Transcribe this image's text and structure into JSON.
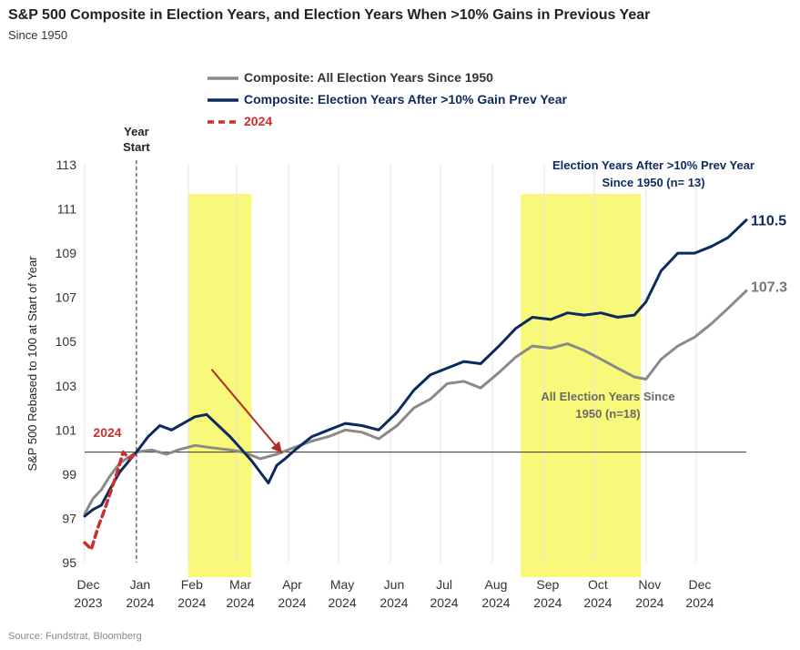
{
  "header": {
    "title": "S&P 500 Composite in Election Years, and Election Years When >10% Gains in Previous Year",
    "subtitle": "Since 1950"
  },
  "footer": {
    "source": "Source: Fundstrat, Bloomberg"
  },
  "chart_data": {
    "type": "line",
    "ylabel": "S&P 500 Rebased to 100 at Start of Year",
    "xlabel": "",
    "ylim": [
      95,
      113
    ],
    "yticks": [
      95,
      97,
      99,
      101,
      103,
      105,
      107,
      109,
      111,
      113
    ],
    "x_tick_labels": [
      [
        "Dec",
        "2023"
      ],
      [
        "Jan",
        "2024"
      ],
      [
        "Feb",
        "2024"
      ],
      [
        "Mar",
        "2024"
      ],
      [
        "Apr",
        "2024"
      ],
      [
        "May",
        "2024"
      ],
      [
        "Jun",
        "2024"
      ],
      [
        "Jul",
        "2024"
      ],
      [
        "Aug",
        "2024"
      ],
      [
        "Sep",
        "2024"
      ],
      [
        "Oct",
        "2024"
      ],
      [
        "Nov",
        "2024"
      ],
      [
        "Dec",
        "2024"
      ]
    ],
    "grid": "vertical",
    "legend_placement": "top-left",
    "reference_line_y": 100,
    "year_start_label": [
      "Year",
      "Start"
    ],
    "highlight_bands": [
      {
        "from": "2024-02-01",
        "to": "2024-03-10",
        "color": "#f8f87a"
      },
      {
        "from": "2024-08-18",
        "to": "2024-10-29",
        "color": "#f8f87a"
      }
    ],
    "arrow": {
      "from": [
        "2024-02-15",
        101.6
      ],
      "to": [
        "2024-04-07",
        100.2
      ],
      "color": "#b02a2a"
    },
    "series": [
      {
        "name": "Composite: All Election Years Since 1950",
        "color": "#8a8a8a",
        "end_label": "107.3",
        "annotation": [
          "All Election Years Since",
          "1950 (n=18)"
        ],
        "annotation_color": "#6a6a6a",
        "points": [
          [
            "2023-12-01",
            97.2
          ],
          [
            "2023-12-06",
            97.9
          ],
          [
            "2023-12-11",
            98.3
          ],
          [
            "2023-12-16",
            98.9
          ],
          [
            "2023-12-22",
            99.5
          ],
          [
            "2024-01-01",
            100.0
          ],
          [
            "2024-01-10",
            100.1
          ],
          [
            "2024-01-19",
            99.9
          ],
          [
            "2024-01-26",
            100.1
          ],
          [
            "2024-02-05",
            100.3
          ],
          [
            "2024-02-15",
            100.2
          ],
          [
            "2024-02-26",
            100.1
          ],
          [
            "2024-03-05",
            100.0
          ],
          [
            "2024-03-15",
            99.7
          ],
          [
            "2024-03-25",
            99.9
          ],
          [
            "2024-04-04",
            100.2
          ],
          [
            "2024-04-15",
            100.5
          ],
          [
            "2024-04-25",
            100.7
          ],
          [
            "2024-05-05",
            101.0
          ],
          [
            "2024-05-15",
            100.9
          ],
          [
            "2024-05-25",
            100.6
          ],
          [
            "2024-06-05",
            101.2
          ],
          [
            "2024-06-15",
            102.0
          ],
          [
            "2024-06-25",
            102.4
          ],
          [
            "2024-07-05",
            103.1
          ],
          [
            "2024-07-15",
            103.2
          ],
          [
            "2024-07-25",
            102.9
          ],
          [
            "2024-08-05",
            103.6
          ],
          [
            "2024-08-15",
            104.3
          ],
          [
            "2024-08-25",
            104.8
          ],
          [
            "2024-09-05",
            104.7
          ],
          [
            "2024-09-15",
            104.9
          ],
          [
            "2024-09-25",
            104.6
          ],
          [
            "2024-10-05",
            104.2
          ],
          [
            "2024-10-15",
            103.8
          ],
          [
            "2024-10-25",
            103.4
          ],
          [
            "2024-11-01",
            103.3
          ],
          [
            "2024-11-10",
            104.2
          ],
          [
            "2024-11-20",
            104.8
          ],
          [
            "2024-11-30",
            105.2
          ],
          [
            "2024-12-10",
            105.8
          ],
          [
            "2024-12-20",
            106.5
          ],
          [
            "2024-12-31",
            107.3
          ]
        ]
      },
      {
        "name": "Composite: Election Years After >10% Gain Prev Year",
        "color": "#0d2a5e",
        "end_label": "110.5",
        "annotation": [
          "Election Years After >10% Prev Year",
          "Since 1950 (n= 13)"
        ],
        "annotation_color": "#0d2a5e",
        "points": [
          [
            "2023-12-01",
            97.1
          ],
          [
            "2023-12-06",
            97.4
          ],
          [
            "2023-12-11",
            97.6
          ],
          [
            "2023-12-16",
            98.3
          ],
          [
            "2023-12-22",
            99.1
          ],
          [
            "2024-01-01",
            100.0
          ],
          [
            "2024-01-08",
            100.7
          ],
          [
            "2024-01-15",
            101.2
          ],
          [
            "2024-01-22",
            101.0
          ],
          [
            "2024-01-29",
            101.3
          ],
          [
            "2024-02-05",
            101.6
          ],
          [
            "2024-02-12",
            101.7
          ],
          [
            "2024-02-19",
            101.2
          ],
          [
            "2024-02-26",
            100.7
          ],
          [
            "2024-03-03",
            100.2
          ],
          [
            "2024-03-10",
            99.6
          ],
          [
            "2024-03-15",
            99.1
          ],
          [
            "2024-03-20",
            98.6
          ],
          [
            "2024-03-25",
            99.4
          ],
          [
            "2024-03-30",
            99.7
          ],
          [
            "2024-04-05",
            100.1
          ],
          [
            "2024-04-15",
            100.7
          ],
          [
            "2024-04-25",
            101.0
          ],
          [
            "2024-05-05",
            101.3
          ],
          [
            "2024-05-15",
            101.2
          ],
          [
            "2024-05-25",
            101.0
          ],
          [
            "2024-06-05",
            101.8
          ],
          [
            "2024-06-15",
            102.8
          ],
          [
            "2024-06-25",
            103.5
          ],
          [
            "2024-07-05",
            103.8
          ],
          [
            "2024-07-15",
            104.1
          ],
          [
            "2024-07-25",
            104.0
          ],
          [
            "2024-08-05",
            104.8
          ],
          [
            "2024-08-15",
            105.6
          ],
          [
            "2024-08-25",
            106.1
          ],
          [
            "2024-09-05",
            106.0
          ],
          [
            "2024-09-15",
            106.3
          ],
          [
            "2024-09-25",
            106.2
          ],
          [
            "2024-10-05",
            106.3
          ],
          [
            "2024-10-15",
            106.1
          ],
          [
            "2024-10-25",
            106.2
          ],
          [
            "2024-11-01",
            106.8
          ],
          [
            "2024-11-10",
            108.2
          ],
          [
            "2024-11-20",
            109.0
          ],
          [
            "2024-11-30",
            109.0
          ],
          [
            "2024-12-10",
            109.3
          ],
          [
            "2024-12-20",
            109.7
          ],
          [
            "2024-12-31",
            110.5
          ]
        ]
      },
      {
        "name": "2024",
        "color": "#c8302e",
        "dashed": true,
        "label": "2024",
        "points": [
          [
            "2023-12-01",
            95.9
          ],
          [
            "2023-12-05",
            95.6
          ],
          [
            "2023-12-09",
            96.6
          ],
          [
            "2023-12-13",
            97.4
          ],
          [
            "2023-12-17",
            98.3
          ],
          [
            "2023-12-21",
            99.2
          ],
          [
            "2023-12-24",
            100.0
          ],
          [
            "2023-12-28",
            99.7
          ],
          [
            "2024-01-01",
            100.0
          ]
        ]
      }
    ]
  }
}
